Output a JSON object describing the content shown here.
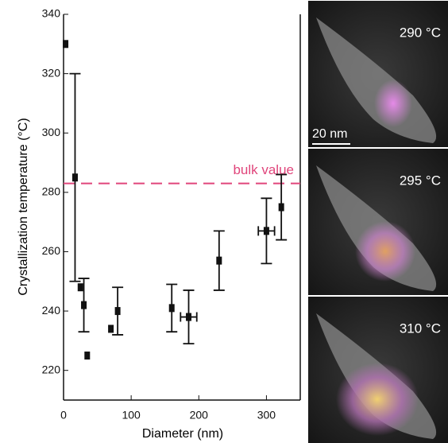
{
  "chart_data": {
    "type": "scatter",
    "x_label": "Diameter (nm)",
    "y_label": "Crystallization temperature (°C)",
    "x": [
      3,
      17,
      25,
      30,
      35,
      70,
      80,
      160,
      185,
      230,
      300,
      322
    ],
    "values": [
      330,
      285,
      248,
      242,
      225,
      234,
      240,
      241,
      238,
      257,
      267,
      275
    ],
    "yerr": [
      null,
      35,
      null,
      9,
      null,
      null,
      8,
      8,
      9,
      10,
      11,
      11
    ],
    "xerr": [
      null,
      null,
      null,
      null,
      null,
      null,
      null,
      null,
      12,
      null,
      12,
      null
    ],
    "color": "#111111",
    "xlim": [
      0,
      350
    ],
    "ylim": [
      210,
      340
    ],
    "xticks": [
      0,
      100,
      200,
      300
    ],
    "yticks": [
      220,
      240,
      260,
      280,
      300,
      320,
      340
    ],
    "hline": {
      "value": 283,
      "label": "bulk value",
      "color": "#e0457b"
    }
  },
  "panels": [
    {
      "label": "290 °C",
      "scale_bar": "20 nm"
    },
    {
      "label": "295 °C"
    },
    {
      "label": "310 °C"
    }
  ]
}
